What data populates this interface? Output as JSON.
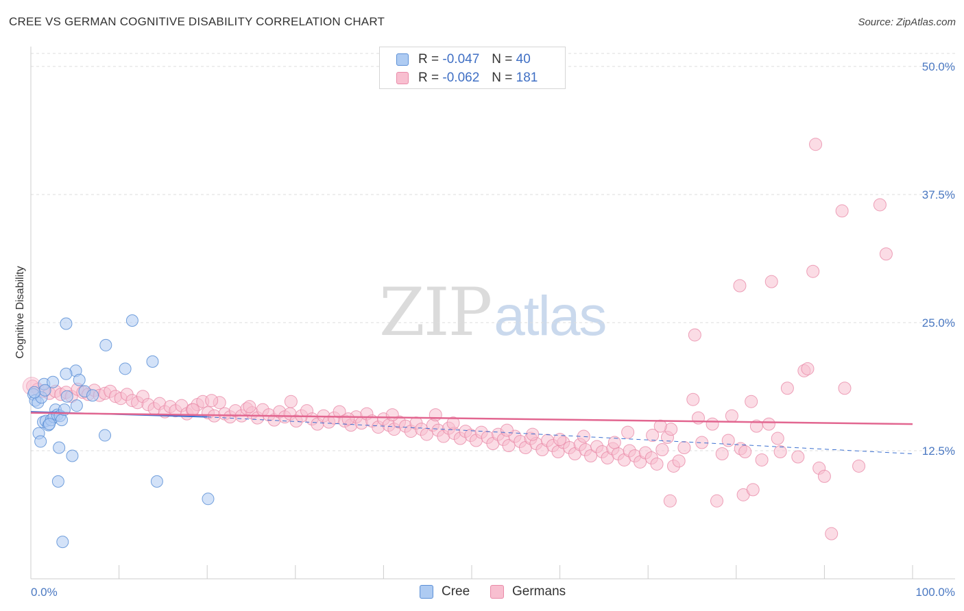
{
  "title": "CREE VS GERMAN COGNITIVE DISABILITY CORRELATION CHART",
  "source": "Source: ZipAtlas.com",
  "watermark": {
    "zip": "ZIP",
    "atlas": "atlas"
  },
  "legend": {
    "rows": [
      {
        "r_label": "R =",
        "r_value": "-0.047",
        "n_label": "N =",
        "n_value": "40"
      },
      {
        "r_label": "R =",
        "r_value": "-0.062",
        "n_label": "N =",
        "n_value": "181"
      }
    ]
  },
  "bottom_legend": {
    "cree": "Cree",
    "germans": "Germans"
  },
  "colors": {
    "cree_fill": "#aecbf2",
    "cree_stroke": "#5b8fd6",
    "cree_line": "#3a6fd0",
    "germans_fill": "#f8bfd0",
    "germans_stroke": "#e98aa8",
    "germans_line": "#e26690",
    "tick_text": "#4a78c2",
    "grid": "#dddddd"
  },
  "chart_data": {
    "type": "scatter",
    "title": "CREE VS GERMAN COGNITIVE DISABILITY CORRELATION CHART",
    "xlabel": "",
    "ylabel": "Cognitive Disability",
    "xlim": [
      0,
      100
    ],
    "ylim": [
      0,
      50
    ],
    "x_tick_labels": [
      "0.0%",
      "100.0%"
    ],
    "y_ticks": [
      12.5,
      25.0,
      37.5,
      50.0
    ],
    "y_tick_labels": [
      "12.5%",
      "25.0%",
      "37.5%",
      "50.0%"
    ],
    "series": [
      {
        "name": "Cree",
        "R": -0.047,
        "N": 40,
        "trend": {
          "x0": 0,
          "y0": 16.3,
          "x1": 20,
          "y1": 15.8,
          "dash_to_x": 100,
          "dash_to_y": 12.2
        },
        "points": [
          [
            0.3,
            18.0
          ],
          [
            0.5,
            17.4
          ],
          [
            0.8,
            17.2
          ],
          [
            1.2,
            17.7
          ],
          [
            1.5,
            19.0
          ],
          [
            2.5,
            19.2
          ],
          [
            0.9,
            14.2
          ],
          [
            1.1,
            13.4
          ],
          [
            1.4,
            15.3
          ],
          [
            1.7,
            15.4
          ],
          [
            2.0,
            15.0
          ],
          [
            2.3,
            15.5
          ],
          [
            2.6,
            15.8
          ],
          [
            2.8,
            16.5
          ],
          [
            3.0,
            16.0
          ],
          [
            3.3,
            15.9
          ],
          [
            3.5,
            15.5
          ],
          [
            3.8,
            16.5
          ],
          [
            4.1,
            17.8
          ],
          [
            5.1,
            20.3
          ],
          [
            5.5,
            19.4
          ],
          [
            5.2,
            16.9
          ],
          [
            4.0,
            20.0
          ],
          [
            4.0,
            24.9
          ],
          [
            8.5,
            22.8
          ],
          [
            11.5,
            25.2
          ],
          [
            10.7,
            20.5
          ],
          [
            13.8,
            21.2
          ],
          [
            8.4,
            14.0
          ],
          [
            3.2,
            12.8
          ],
          [
            4.7,
            12.0
          ],
          [
            3.1,
            9.5
          ],
          [
            14.3,
            9.5
          ],
          [
            20.1,
            7.8
          ],
          [
            3.6,
            3.6
          ],
          [
            1.6,
            18.4
          ],
          [
            0.4,
            18.2
          ],
          [
            6.1,
            18.3
          ],
          [
            7.0,
            17.9
          ],
          [
            2.1,
            15.1
          ]
        ]
      },
      {
        "name": "Germans",
        "R": -0.062,
        "N": 181,
        "trend": {
          "x0": 0,
          "y0": 16.2,
          "x1": 100,
          "y1": 15.1
        },
        "points": [
          [
            0.2,
            18.8
          ],
          [
            0.8,
            18.5
          ],
          [
            1.5,
            18.3
          ],
          [
            2.1,
            18.1
          ],
          [
            2.8,
            18.3
          ],
          [
            3.4,
            18.0
          ],
          [
            4.0,
            18.2
          ],
          [
            4.6,
            17.8
          ],
          [
            5.3,
            18.5
          ],
          [
            5.9,
            18.2
          ],
          [
            6.5,
            18.0
          ],
          [
            7.2,
            18.4
          ],
          [
            7.8,
            17.9
          ],
          [
            8.4,
            18.1
          ],
          [
            9.0,
            18.3
          ],
          [
            9.6,
            17.8
          ],
          [
            10.2,
            17.6
          ],
          [
            10.9,
            18.0
          ],
          [
            11.5,
            17.4
          ],
          [
            12.1,
            17.2
          ],
          [
            12.7,
            17.8
          ],
          [
            13.3,
            17.0
          ],
          [
            14.0,
            16.6
          ],
          [
            14.6,
            17.1
          ],
          [
            15.2,
            16.3
          ],
          [
            15.8,
            16.8
          ],
          [
            16.4,
            16.4
          ],
          [
            17.1,
            16.9
          ],
          [
            17.7,
            16.1
          ],
          [
            18.3,
            16.5
          ],
          [
            18.9,
            17.0
          ],
          [
            19.5,
            17.3
          ],
          [
            20.1,
            16.2
          ],
          [
            20.8,
            15.9
          ],
          [
            21.4,
            17.2
          ],
          [
            22.0,
            16.1
          ],
          [
            22.6,
            15.8
          ],
          [
            23.2,
            16.4
          ],
          [
            23.9,
            15.9
          ],
          [
            24.5,
            16.6
          ],
          [
            25.1,
            16.2
          ],
          [
            25.7,
            15.7
          ],
          [
            26.3,
            16.5
          ],
          [
            27.0,
            16.0
          ],
          [
            27.6,
            15.5
          ],
          [
            28.2,
            16.3
          ],
          [
            28.8,
            15.8
          ],
          [
            29.4,
            16.1
          ],
          [
            30.1,
            15.4
          ],
          [
            30.7,
            15.9
          ],
          [
            31.3,
            16.4
          ],
          [
            31.9,
            15.6
          ],
          [
            32.5,
            15.1
          ],
          [
            33.2,
            15.9
          ],
          [
            33.8,
            15.3
          ],
          [
            34.4,
            15.7
          ],
          [
            35.0,
            16.3
          ],
          [
            35.6,
            15.4
          ],
          [
            36.3,
            15.0
          ],
          [
            36.9,
            15.8
          ],
          [
            37.5,
            15.2
          ],
          [
            38.1,
            16.1
          ],
          [
            38.7,
            15.4
          ],
          [
            39.4,
            14.8
          ],
          [
            40.0,
            15.6
          ],
          [
            40.6,
            15.0
          ],
          [
            41.2,
            14.6
          ],
          [
            41.8,
            15.3
          ],
          [
            42.5,
            14.9
          ],
          [
            43.1,
            14.4
          ],
          [
            43.7,
            15.2
          ],
          [
            44.3,
            14.6
          ],
          [
            44.9,
            14.1
          ],
          [
            45.6,
            15.0
          ],
          [
            46.2,
            14.5
          ],
          [
            46.8,
            13.9
          ],
          [
            47.4,
            14.7
          ],
          [
            48.0,
            14.2
          ],
          [
            48.7,
            13.7
          ],
          [
            49.3,
            14.4
          ],
          [
            49.9,
            14.0
          ],
          [
            50.5,
            13.5
          ],
          [
            51.1,
            14.3
          ],
          [
            51.8,
            13.8
          ],
          [
            52.4,
            13.2
          ],
          [
            53.0,
            14.1
          ],
          [
            53.6,
            13.6
          ],
          [
            54.2,
            13.0
          ],
          [
            54.9,
            13.9
          ],
          [
            55.5,
            13.4
          ],
          [
            56.1,
            12.8
          ],
          [
            56.7,
            13.7
          ],
          [
            57.3,
            13.2
          ],
          [
            58.0,
            12.6
          ],
          [
            58.6,
            13.5
          ],
          [
            59.2,
            13.0
          ],
          [
            59.8,
            12.4
          ],
          [
            60.4,
            13.3
          ],
          [
            61.1,
            12.8
          ],
          [
            61.7,
            12.2
          ],
          [
            62.3,
            13.1
          ],
          [
            62.9,
            12.6
          ],
          [
            63.5,
            12.0
          ],
          [
            64.2,
            12.9
          ],
          [
            64.8,
            12.4
          ],
          [
            65.4,
            11.8
          ],
          [
            66.0,
            12.7
          ],
          [
            66.6,
            12.2
          ],
          [
            67.3,
            11.6
          ],
          [
            67.9,
            12.5
          ],
          [
            68.5,
            12.0
          ],
          [
            69.1,
            11.4
          ],
          [
            69.7,
            12.3
          ],
          [
            70.4,
            11.8
          ],
          [
            71.0,
            11.2
          ],
          [
            71.6,
            12.6
          ],
          [
            72.2,
            13.8
          ],
          [
            72.9,
            11.0
          ],
          [
            73.5,
            11.5
          ],
          [
            74.1,
            12.8
          ],
          [
            20.5,
            17.4
          ],
          [
            29.5,
            17.3
          ],
          [
            41.0,
            16.0
          ],
          [
            47.9,
            15.2
          ],
          [
            56.9,
            14.1
          ],
          [
            62.7,
            13.9
          ],
          [
            67.7,
            14.3
          ],
          [
            70.5,
            14.0
          ],
          [
            72.6,
            14.6
          ],
          [
            75.1,
            17.5
          ],
          [
            75.7,
            15.7
          ],
          [
            76.1,
            13.3
          ],
          [
            77.3,
            15.1
          ],
          [
            78.4,
            12.2
          ],
          [
            79.1,
            13.5
          ],
          [
            79.5,
            15.9
          ],
          [
            80.5,
            12.7
          ],
          [
            81.0,
            12.4
          ],
          [
            81.7,
            17.3
          ],
          [
            82.3,
            14.9
          ],
          [
            82.9,
            11.6
          ],
          [
            83.7,
            15.1
          ],
          [
            84.7,
            13.7
          ],
          [
            85.0,
            12.4
          ],
          [
            85.8,
            18.6
          ],
          [
            87.0,
            11.9
          ],
          [
            87.7,
            20.3
          ],
          [
            88.1,
            20.5
          ],
          [
            89.4,
            10.8
          ],
          [
            92.3,
            18.6
          ],
          [
            93.9,
            11.0
          ],
          [
            75.3,
            23.8
          ],
          [
            80.4,
            28.6
          ],
          [
            84.0,
            29.0
          ],
          [
            88.7,
            30.0
          ],
          [
            90.0,
            10.0
          ],
          [
            80.8,
            8.2
          ],
          [
            72.5,
            7.6
          ],
          [
            77.8,
            7.6
          ],
          [
            81.9,
            8.7
          ],
          [
            92.0,
            35.9
          ],
          [
            89.0,
            42.4
          ],
          [
            96.3,
            36.5
          ],
          [
            97.0,
            31.7
          ],
          [
            90.8,
            4.4
          ],
          [
            18.4,
            16.5
          ],
          [
            24.8,
            16.8
          ],
          [
            36.0,
            15.6
          ],
          [
            54.0,
            14.5
          ],
          [
            60.0,
            13.6
          ],
          [
            66.2,
            13.3
          ],
          [
            71.4,
            14.9
          ],
          [
            45.9,
            16.0
          ]
        ]
      }
    ]
  }
}
